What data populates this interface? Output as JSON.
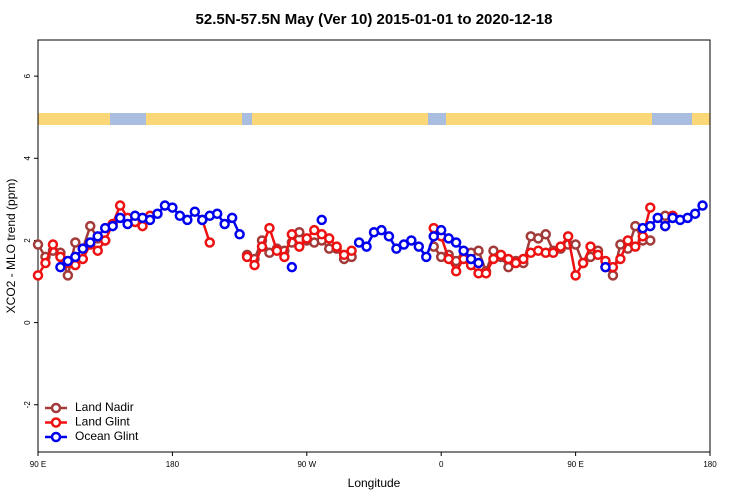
{
  "chart_data": {
    "type": "line",
    "title": "52.5N-57.5N May (Ver 10)   2015-01-01 to 2020-12-18",
    "x_label": "Longitude",
    "y_label": "XCO2 - MLO trend (ppm)",
    "x": [
      90,
      95,
      100,
      105,
      110,
      115,
      120,
      125,
      130,
      135,
      140,
      145,
      150,
      155,
      160,
      165,
      170,
      175,
      180,
      185,
      190,
      195,
      200,
      205,
      210,
      215,
      220,
      225,
      230,
      235,
      240,
      245,
      250,
      255,
      260,
      265,
      270,
      275,
      280,
      285,
      290,
      295,
      300,
      305,
      310,
      315,
      320,
      325,
      330,
      335,
      340,
      345,
      350,
      355,
      360,
      365,
      370,
      375,
      380,
      385,
      390,
      395,
      400,
      405,
      410,
      415,
      420,
      425,
      430,
      435,
      440,
      445,
      450,
      455,
      460,
      465,
      470,
      475,
      480,
      485,
      490,
      495,
      500,
      505,
      510,
      515,
      520,
      525,
      530,
      535,
      540
    ],
    "xlim": [
      90,
      540
    ],
    "xticks": [
      {
        "value": 90,
        "label": "90 E"
      },
      {
        "value": 180,
        "label": "180"
      },
      {
        "value": 270,
        "label": "90 W"
      },
      {
        "value": 360,
        "label": "0"
      },
      {
        "value": 450,
        "label": "90 E"
      },
      {
        "value": 540,
        "label": "180"
      }
    ],
    "ylim": [
      -3.15,
      6.88
    ],
    "yticks": [
      -2,
      0,
      2,
      4,
      6
    ],
    "grid": false,
    "legend": "bottom-left",
    "series": [
      {
        "name": "Land Nadir",
        "color": "#a33a3a",
        "values": [
          1.9,
          1.6,
          1.75,
          1.7,
          1.15,
          1.95,
          1.8,
          2.35,
          2.05,
          2.0,
          null,
          null,
          null,
          null,
          null,
          null,
          null,
          null,
          null,
          null,
          null,
          null,
          null,
          null,
          null,
          null,
          null,
          null,
          1.65,
          1.55,
          2.0,
          1.7,
          1.8,
          1.75,
          1.95,
          2.2,
          2.0,
          1.95,
          2.0,
          1.8,
          1.8,
          1.55,
          1.6,
          null,
          null,
          null,
          null,
          null,
          null,
          null,
          null,
          null,
          null,
          1.85,
          1.6,
          1.65,
          1.5,
          1.6,
          1.7,
          1.75,
          1.25,
          1.75,
          1.6,
          1.35,
          1.5,
          1.45,
          2.1,
          2.05,
          2.15,
          1.75,
          1.8,
          1.9,
          1.9,
          1.45,
          1.6,
          1.75,
          1.35,
          1.15,
          1.9,
          1.8,
          2.35,
          2.0,
          2.0,
          null,
          2.6,
          2.55,
          null,
          null,
          null,
          null,
          null
        ]
      },
      {
        "name": "Land Glint",
        "color": "#ee1111",
        "values": [
          1.15,
          1.45,
          1.9,
          1.6,
          1.45,
          1.4,
          1.55,
          1.9,
          1.75,
          2.0,
          2.4,
          2.85,
          2.55,
          2.45,
          2.35,
          2.6,
          null,
          null,
          null,
          null,
          null,
          null,
          2.5,
          1.95,
          null,
          null,
          null,
          null,
          1.6,
          1.4,
          1.85,
          2.3,
          1.75,
          1.6,
          2.15,
          1.85,
          2.05,
          2.25,
          2.15,
          2.05,
          1.85,
          1.65,
          1.75,
          null,
          null,
          null,
          null,
          null,
          null,
          null,
          null,
          null,
          null,
          2.3,
          2.1,
          1.55,
          1.25,
          1.55,
          1.4,
          1.2,
          1.2,
          1.55,
          1.65,
          1.55,
          1.45,
          1.55,
          1.7,
          1.75,
          1.7,
          1.7,
          1.85,
          2.1,
          1.15,
          1.45,
          1.85,
          1.65,
          1.5,
          1.35,
          1.55,
          2.0,
          1.85,
          2.1,
          2.8,
          null,
          2.35,
          2.6,
          null,
          null,
          null,
          null,
          null
        ]
      },
      {
        "name": "Ocean Glint",
        "color": "#0000ee",
        "values": [
          null,
          null,
          null,
          1.35,
          1.5,
          1.6,
          1.8,
          1.95,
          2.1,
          2.3,
          2.35,
          2.55,
          2.4,
          2.6,
          2.55,
          2.5,
          2.65,
          2.85,
          2.8,
          2.6,
          2.5,
          2.7,
          2.5,
          2.6,
          2.65,
          2.4,
          2.55,
          2.15,
          null,
          null,
          null,
          null,
          null,
          null,
          1.35,
          null,
          null,
          null,
          2.5,
          null,
          null,
          null,
          null,
          1.95,
          1.85,
          2.2,
          2.25,
          2.1,
          1.8,
          1.9,
          2.0,
          1.85,
          1.6,
          2.1,
          2.25,
          2.05,
          1.95,
          1.75,
          1.55,
          1.45,
          null,
          null,
          null,
          null,
          null,
          null,
          null,
          null,
          null,
          null,
          null,
          null,
          null,
          null,
          null,
          null,
          1.35,
          null,
          null,
          null,
          null,
          2.3,
          2.35,
          2.55,
          2.35,
          2.55,
          2.5,
          2.55,
          2.65,
          2.85,
          null
        ]
      }
    ]
  }
}
